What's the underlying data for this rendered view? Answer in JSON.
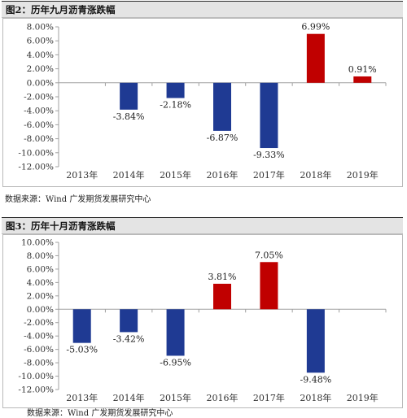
{
  "charts": [
    {
      "title": "图2：历年九月沥青涨跌幅",
      "source": "数据来源：Wind  广发期货发展研究中心"
    },
    {
      "title": "图3：历年十月沥青涨跌幅",
      "source": "数据来源：Wind  广发期货发展研究中心"
    }
  ],
  "colors": {
    "negative": "#1f3a93",
    "positive": "#c00000",
    "axis": "#a0a0a0"
  },
  "chart_data": [
    {
      "type": "bar",
      "title": "图2：历年九月沥青涨跌幅",
      "categories": [
        "2013年",
        "2014年",
        "2015年",
        "2016年",
        "2017年",
        "2018年",
        "2019年"
      ],
      "values": [
        null,
        -3.84,
        -2.18,
        -6.87,
        -9.33,
        6.99,
        0.91
      ],
      "data_labels": [
        "",
        "-3.84%",
        "-2.18%",
        "-6.87%",
        "-9.33%",
        "6.99%",
        "0.91%"
      ],
      "yticks": [
        "8.00%",
        "6.00%",
        "4.00%",
        "2.00%",
        "0.00%",
        "-2.00%",
        "-4.00%",
        "-6.00%",
        "-8.00%",
        "-10.00%",
        "-12.00%"
      ],
      "ylim": [
        -12,
        8
      ],
      "grid": false,
      "legend": "none"
    },
    {
      "type": "bar",
      "title": "图3：历年十月沥青涨跌幅",
      "categories": [
        "2013年",
        "2014年",
        "2015年",
        "2016年",
        "2017年",
        "2018年",
        "2019年"
      ],
      "values": [
        -5.03,
        -3.42,
        -6.95,
        3.81,
        7.05,
        -9.48,
        null
      ],
      "data_labels": [
        "-5.03%",
        "-3.42%",
        "-6.95%",
        "3.81%",
        "7.05%",
        "-9.48%",
        ""
      ],
      "yticks": [
        "10.00%",
        "8.00%",
        "6.00%",
        "4.00%",
        "2.00%",
        "0.00%",
        "-2.00%",
        "-4.00%",
        "-6.00%",
        "-8.00%",
        "-10.00%",
        "-12.00%"
      ],
      "ylim": [
        -12,
        10
      ],
      "grid": false,
      "legend": "none"
    }
  ]
}
